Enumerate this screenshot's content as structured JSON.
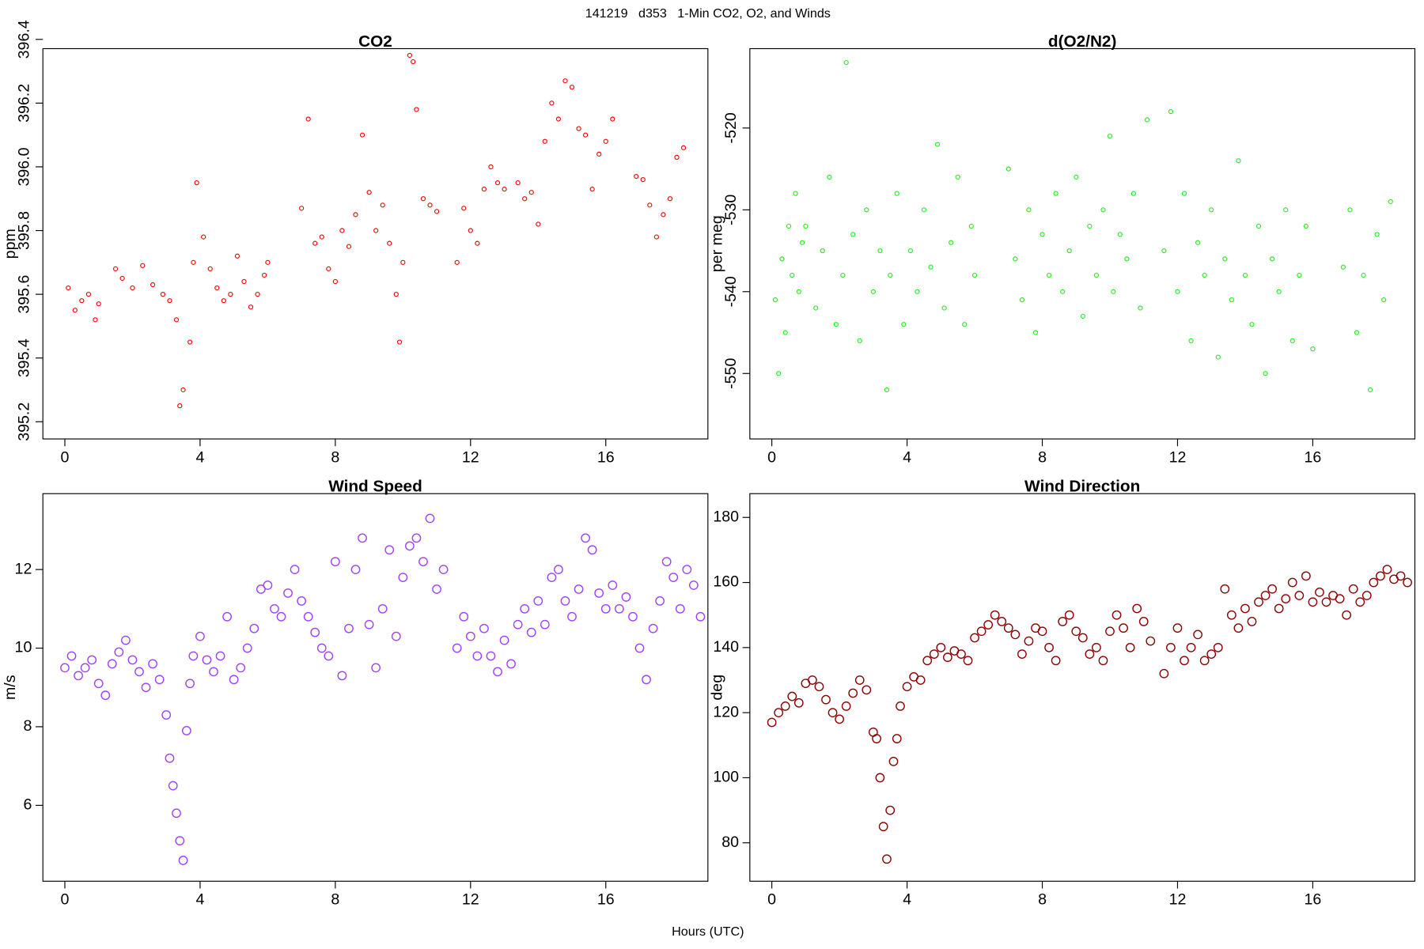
{
  "suptitle": "141219   d353   1-Min CO2, O2, and Winds",
  "xlabel": "Hours (UTC)",
  "chart_data": [
    {
      "type": "scatter",
      "title": "CO2",
      "ylabel": "ppm",
      "color": "#ff0000",
      "ytick_rotation": -90,
      "xlim": [
        -0.65,
        19.02
      ],
      "xticks": [
        0,
        4,
        8,
        12,
        16
      ],
      "ylim": [
        395.146,
        396.371
      ],
      "yticks": [
        395.2,
        395.4,
        395.6,
        395.8,
        {
          "value": 396,
          "label": "396.0"
        },
        396.2,
        396.4
      ],
      "x": [
        0.1,
        0.3,
        0.5,
        0.7,
        0.9,
        1.0,
        1.5,
        1.7,
        2.0,
        2.3,
        2.6,
        2.9,
        3.1,
        3.3,
        3.4,
        3.5,
        3.7,
        3.8,
        3.9,
        4.1,
        4.3,
        4.5,
        4.7,
        4.9,
        5.1,
        5.3,
        5.5,
        5.7,
        5.9,
        6.0,
        7.0,
        7.2,
        7.4,
        7.6,
        7.8,
        8.0,
        8.2,
        8.4,
        8.6,
        8.8,
        9.0,
        9.2,
        9.4,
        9.6,
        9.8,
        9.9,
        10.0,
        10.2,
        10.3,
        10.4,
        10.6,
        10.8,
        11.0,
        11.6,
        11.8,
        12.0,
        12.2,
        12.4,
        12.6,
        12.8,
        13.0,
        13.4,
        13.6,
        13.8,
        14.0,
        14.2,
        14.4,
        14.6,
        14.8,
        15.0,
        15.2,
        15.4,
        15.6,
        15.8,
        16.0,
        16.2,
        16.9,
        17.1,
        17.3,
        17.5,
        17.7,
        17.9,
        18.1,
        18.3
      ],
      "values": [
        395.62,
        395.55,
        395.58,
        395.6,
        395.52,
        395.57,
        395.68,
        395.65,
        395.62,
        395.69,
        395.63,
        395.6,
        395.58,
        395.52,
        395.25,
        395.3,
        395.45,
        395.7,
        395.95,
        395.78,
        395.68,
        395.62,
        395.58,
        395.6,
        395.72,
        395.64,
        395.56,
        395.6,
        395.66,
        395.7,
        395.87,
        396.15,
        395.76,
        395.78,
        395.68,
        395.64,
        395.8,
        395.75,
        395.85,
        396.1,
        395.92,
        395.8,
        395.88,
        395.76,
        395.6,
        395.45,
        395.7,
        396.35,
        396.33,
        396.18,
        395.9,
        395.88,
        395.86,
        395.7,
        395.87,
        395.8,
        395.76,
        395.93,
        396.0,
        395.95,
        395.93,
        395.95,
        395.9,
        395.92,
        395.82,
        396.08,
        396.2,
        396.15,
        396.27,
        396.25,
        396.12,
        396.1,
        395.93,
        396.04,
        396.08,
        396.15,
        395.97,
        395.96,
        395.88,
        395.78,
        395.85,
        395.9,
        396.03,
        396.06
      ]
    },
    {
      "type": "scatter",
      "title": "d(O2/N2)",
      "ylabel": "per meg",
      "color": "#22ee22",
      "ytick_rotation": -90,
      "xlim": [
        -0.65,
        19.02
      ],
      "xticks": [
        0,
        4,
        8,
        12,
        16
      ],
      "ylim": [
        -558,
        -510.3
      ],
      "yticks": [
        -550,
        -540,
        -530,
        -520
      ],
      "x": [
        0.1,
        0.2,
        0.3,
        0.4,
        0.5,
        0.6,
        0.7,
        0.8,
        0.9,
        1.0,
        1.3,
        1.5,
        1.7,
        1.9,
        2.1,
        2.2,
        2.4,
        2.6,
        2.8,
        3.0,
        3.2,
        3.4,
        3.5,
        3.7,
        3.9,
        4.1,
        4.3,
        4.5,
        4.7,
        4.9,
        5.1,
        5.3,
        5.5,
        5.7,
        5.9,
        6.0,
        7.0,
        7.2,
        7.4,
        7.6,
        7.8,
        8.0,
        8.2,
        8.4,
        8.6,
        8.8,
        9.0,
        9.2,
        9.4,
        9.6,
        9.8,
        10.0,
        10.1,
        10.3,
        10.5,
        10.7,
        10.9,
        11.1,
        11.6,
        11.8,
        12.0,
        12.2,
        12.4,
        12.6,
        12.8,
        13.0,
        13.2,
        13.4,
        13.6,
        13.8,
        14.0,
        14.2,
        14.4,
        14.6,
        14.8,
        15.0,
        15.2,
        15.4,
        15.6,
        15.8,
        16.0,
        16.9,
        17.1,
        17.3,
        17.5,
        17.7,
        17.9,
        18.1,
        18.3
      ],
      "values": [
        -541,
        -550,
        -536,
        -545,
        -532,
        -538,
        -528,
        -540,
        -534,
        -532,
        -542,
        -535,
        -526,
        -544,
        -538,
        -512,
        -533,
        -546,
        -530,
        -540,
        -535,
        -552,
        -538,
        -528,
        -544,
        -535,
        -540,
        -530,
        -537,
        -522,
        -542,
        -534,
        -526,
        -544,
        -532,
        -538,
        -525,
        -536,
        -541,
        -530,
        -545,
        -533,
        -538,
        -528,
        -540,
        -535,
        -526,
        -543,
        -532,
        -538,
        -530,
        -521,
        -540,
        -533,
        -536,
        -528,
        -542,
        -519,
        -535,
        -518,
        -540,
        -528,
        -546,
        -534,
        -538,
        -530,
        -548,
        -536,
        -541,
        -524,
        -538,
        -544,
        -532,
        -550,
        -536,
        -540,
        -530,
        -546,
        -538,
        -532,
        -547,
        -537,
        -530,
        -545,
        -538,
        -552,
        -533,
        -541,
        -529
      ]
    },
    {
      "type": "scatter",
      "title": "Wind Speed",
      "ylabel": "m/s",
      "color": "#a040ff",
      "ytick_rotation": 0,
      "xlim": [
        -0.65,
        19.02
      ],
      "xticks": [
        0,
        4,
        8,
        12,
        16
      ],
      "ylim": [
        4.07,
        13.93
      ],
      "yticks": [
        6,
        8,
        10,
        12
      ],
      "x": [
        0.0,
        0.2,
        0.4,
        0.6,
        0.8,
        1.0,
        1.2,
        1.4,
        1.6,
        1.8,
        2.0,
        2.2,
        2.4,
        2.6,
        2.8,
        3.0,
        3.1,
        3.2,
        3.3,
        3.4,
        3.5,
        3.6,
        3.7,
        3.8,
        4.0,
        4.2,
        4.4,
        4.6,
        4.8,
        5.0,
        5.2,
        5.4,
        5.6,
        5.8,
        6.0,
        6.2,
        6.4,
        6.6,
        6.8,
        7.0,
        7.2,
        7.4,
        7.6,
        7.8,
        8.0,
        8.2,
        8.4,
        8.6,
        8.8,
        9.0,
        9.2,
        9.4,
        9.6,
        9.8,
        10.0,
        10.2,
        10.4,
        10.6,
        10.8,
        11.0,
        11.2,
        11.6,
        11.8,
        12.0,
        12.2,
        12.4,
        12.6,
        12.8,
        13.0,
        13.2,
        13.4,
        13.6,
        13.8,
        14.0,
        14.2,
        14.4,
        14.6,
        14.8,
        15.0,
        15.2,
        15.4,
        15.6,
        15.8,
        16.0,
        16.2,
        16.4,
        16.6,
        16.8,
        17.0,
        17.2,
        17.4,
        17.6,
        17.8,
        18.0,
        18.2,
        18.4,
        18.6,
        18.8
      ],
      "values": [
        9.5,
        9.8,
        9.3,
        9.5,
        9.7,
        9.1,
        8.8,
        9.6,
        9.9,
        10.2,
        9.7,
        9.4,
        9.0,
        9.6,
        9.2,
        8.3,
        7.2,
        6.5,
        5.8,
        5.1,
        4.6,
        7.9,
        9.1,
        9.8,
        10.3,
        9.7,
        9.4,
        9.8,
        10.8,
        9.2,
        9.5,
        10.0,
        10.5,
        11.5,
        11.6,
        11.0,
        10.8,
        11.4,
        12.0,
        11.2,
        10.8,
        10.4,
        10.0,
        9.8,
        12.2,
        9.3,
        10.5,
        12.0,
        12.8,
        10.6,
        9.5,
        11.0,
        12.5,
        10.3,
        11.8,
        12.6,
        12.8,
        12.2,
        13.3,
        11.5,
        12.0,
        10.0,
        10.8,
        10.3,
        9.8,
        10.5,
        9.8,
        9.4,
        10.2,
        9.6,
        10.6,
        11.0,
        10.4,
        11.2,
        10.6,
        11.8,
        12.0,
        11.2,
        10.8,
        11.5,
        12.8,
        12.5,
        11.4,
        11.0,
        11.6,
        11.0,
        11.3,
        10.8,
        10.0,
        9.2,
        10.5,
        11.2,
        12.2,
        11.8,
        11.0,
        12.0,
        11.6,
        10.8
      ]
    },
    {
      "type": "scatter",
      "title": "Wind Direction",
      "ylabel": "deg",
      "color": "#8b0000",
      "ytick_rotation": 0,
      "xlim": [
        -0.65,
        19.02
      ],
      "xticks": [
        0,
        4,
        8,
        12,
        16
      ],
      "ylim": [
        68.2,
        187.3
      ],
      "yticks": [
        80,
        100,
        120,
        140,
        160,
        180
      ],
      "x": [
        0.0,
        0.2,
        0.4,
        0.6,
        0.8,
        1.0,
        1.2,
        1.4,
        1.6,
        1.8,
        2.0,
        2.2,
        2.4,
        2.6,
        2.8,
        3.0,
        3.1,
        3.2,
        3.3,
        3.4,
        3.5,
        3.6,
        3.7,
        3.8,
        4.0,
        4.2,
        4.4,
        4.6,
        4.8,
        5.0,
        5.2,
        5.4,
        5.6,
        5.8,
        6.0,
        6.2,
        6.4,
        6.6,
        6.8,
        7.0,
        7.2,
        7.4,
        7.6,
        7.8,
        8.0,
        8.2,
        8.4,
        8.6,
        8.8,
        9.0,
        9.2,
        9.4,
        9.6,
        9.8,
        10.0,
        10.2,
        10.4,
        10.6,
        10.8,
        11.0,
        11.2,
        11.6,
        11.8,
        12.0,
        12.2,
        12.4,
        12.6,
        12.8,
        13.0,
        13.2,
        13.4,
        13.6,
        13.8,
        14.0,
        14.2,
        14.4,
        14.6,
        14.8,
        15.0,
        15.2,
        15.4,
        15.6,
        15.8,
        16.0,
        16.2,
        16.4,
        16.6,
        16.8,
        17.0,
        17.2,
        17.4,
        17.6,
        17.8,
        18.0,
        18.2,
        18.4,
        18.6,
        18.8
      ],
      "values": [
        117,
        120,
        122,
        125,
        123,
        129,
        130,
        128,
        124,
        120,
        118,
        122,
        126,
        130,
        127,
        114,
        112,
        100,
        85,
        75,
        90,
        105,
        112,
        122,
        128,
        131,
        130,
        136,
        138,
        140,
        137,
        139,
        138,
        136,
        143,
        145,
        147,
        150,
        148,
        146,
        144,
        138,
        142,
        146,
        145,
        140,
        136,
        148,
        150,
        145,
        143,
        138,
        140,
        136,
        145,
        150,
        146,
        140,
        152,
        148,
        142,
        132,
        140,
        146,
        136,
        140,
        144,
        136,
        138,
        140,
        158,
        150,
        146,
        152,
        148,
        154,
        156,
        158,
        152,
        155,
        160,
        156,
        162,
        154,
        157,
        154,
        156,
        155,
        150,
        158,
        154,
        156,
        160,
        162,
        164,
        161,
        162,
        160
      ]
    }
  ]
}
